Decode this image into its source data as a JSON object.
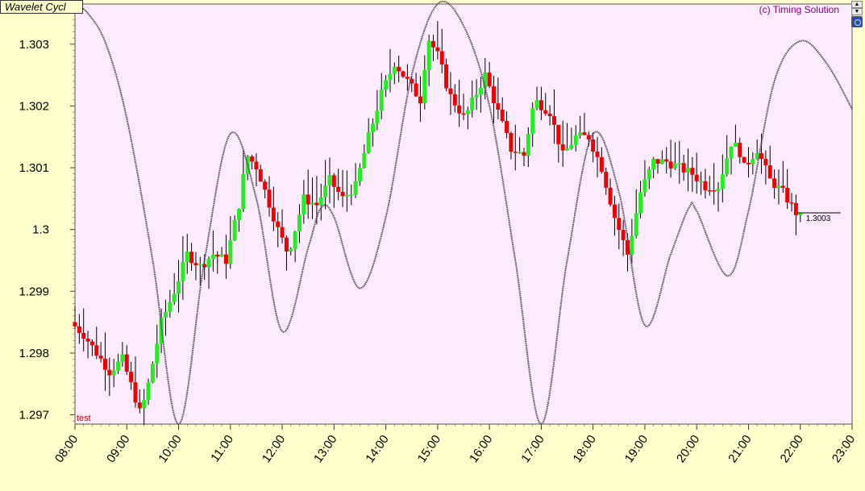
{
  "header": {
    "title": "Wavelet Cycl",
    "copyright": "(c) Timing Solution"
  },
  "icons": {
    "scroll_up": "arrow-up-icon",
    "scroll_down": "arrow-down-icon",
    "globe": "globe-icon"
  },
  "colors": {
    "plot_bg": "#fcebfc",
    "page_bg": "#ffffcc",
    "bull": "#22ee22",
    "bear": "#ee0000",
    "wick": "#000000",
    "cycle": "#5a4a6a",
    "label_red": "#cc0000"
  },
  "chart_data": {
    "type": "candlestick",
    "title": "Wavelet Cycl",
    "y_ticks": [
      "1.297",
      "1.298",
      "1.299",
      "1.3",
      "1.301",
      "1.302",
      "1.303"
    ],
    "ylim": [
      1.29685,
      1.30365
    ],
    "x_ticks": [
      "08:00",
      "09:00",
      "10:00",
      "11:00",
      "12:00",
      "13:00",
      "14:00",
      "15:00",
      "16:00",
      "17:00",
      "18:00",
      "19:00",
      "20:00",
      "21:00",
      "22:00",
      "23:00"
    ],
    "series_label": "test",
    "last_price_label": "1.3003",
    "last_price": 1.30027,
    "price_path": [
      [
        8.0,
        1.2985
      ],
      [
        8.25,
        1.2983
      ],
      [
        8.5,
        1.298
      ],
      [
        8.75,
        1.2977
      ],
      [
        9.0,
        1.2979
      ],
      [
        9.2,
        1.2974
      ],
      [
        9.35,
        1.297
      ],
      [
        9.5,
        1.2975
      ],
      [
        9.75,
        1.2985
      ],
      [
        10.0,
        1.299
      ],
      [
        10.25,
        1.2996
      ],
      [
        10.5,
        1.2994
      ],
      [
        10.75,
        1.2996
      ],
      [
        11.0,
        1.2995
      ],
      [
        11.25,
        1.3004
      ],
      [
        11.4,
        1.3012
      ],
      [
        11.6,
        1.301
      ],
      [
        12.0,
        1.3
      ],
      [
        12.2,
        1.2996
      ],
      [
        12.5,
        1.3005
      ],
      [
        12.75,
        1.3004
      ],
      [
        13.0,
        1.3008
      ],
      [
        13.25,
        1.3005
      ],
      [
        13.5,
        1.3007
      ],
      [
        13.75,
        1.3015
      ],
      [
        14.0,
        1.3022
      ],
      [
        14.25,
        1.3027
      ],
      [
        14.5,
        1.3024
      ],
      [
        14.75,
        1.3021
      ],
      [
        14.9,
        1.3031
      ],
      [
        15.1,
        1.3028
      ],
      [
        15.3,
        1.3022
      ],
      [
        15.6,
        1.3018
      ],
      [
        16.0,
        1.3025
      ],
      [
        16.25,
        1.3019
      ],
      [
        16.5,
        1.3013
      ],
      [
        16.75,
        1.3012
      ],
      [
        16.95,
        1.3021
      ],
      [
        17.25,
        1.3019
      ],
      [
        17.5,
        1.3012
      ],
      [
        17.75,
        1.3015
      ],
      [
        18.0,
        1.3015
      ],
      [
        18.25,
        1.301
      ],
      [
        18.5,
        1.3002
      ],
      [
        18.75,
        1.2996
      ],
      [
        19.0,
        1.3006
      ],
      [
        19.25,
        1.3011
      ],
      [
        19.5,
        1.3011
      ],
      [
        19.75,
        1.301
      ],
      [
        20.0,
        1.3009
      ],
      [
        20.25,
        1.3007
      ],
      [
        20.5,
        1.3007
      ],
      [
        20.75,
        1.3014
      ],
      [
        20.9,
        1.3013
      ],
      [
        21.0,
        1.301
      ],
      [
        21.25,
        1.3013
      ],
      [
        21.5,
        1.3008
      ],
      [
        21.75,
        1.3006
      ],
      [
        22.0,
        1.30027
      ]
    ],
    "wavelet_cycle": [
      [
        8.0,
        1.30365
      ],
      [
        8.25,
        1.3035
      ],
      [
        8.6,
        1.303
      ],
      [
        9.0,
        1.3018
      ],
      [
        9.5,
        1.2995
      ],
      [
        10.0,
        1.29685
      ],
      [
        10.5,
        1.2995
      ],
      [
        11.0,
        1.30155
      ],
      [
        11.5,
        1.3005
      ],
      [
        12.0,
        1.29835
      ],
      [
        12.5,
        1.2997
      ],
      [
        12.75,
        1.30035
      ],
      [
        13.0,
        1.3002
      ],
      [
        13.5,
        1.29905
      ],
      [
        14.0,
        1.3002
      ],
      [
        14.5,
        1.3025
      ],
      [
        15.0,
        1.30365
      ],
      [
        15.5,
        1.3033
      ],
      [
        16.0,
        1.302
      ],
      [
        16.5,
        1.2995
      ],
      [
        17.0,
        1.29685
      ],
      [
        17.5,
        1.2995
      ],
      [
        18.0,
        1.30155
      ],
      [
        18.5,
        1.3006
      ],
      [
        19.0,
        1.29845
      ],
      [
        19.5,
        1.2996
      ],
      [
        19.85,
        1.30035
      ],
      [
        20.0,
        1.3003
      ],
      [
        20.6,
        1.29925
      ],
      [
        21.0,
        1.3003
      ],
      [
        21.5,
        1.3024
      ],
      [
        22.0,
        1.30305
      ],
      [
        22.5,
        1.3027
      ],
      [
        23.0,
        1.30195
      ]
    ]
  }
}
